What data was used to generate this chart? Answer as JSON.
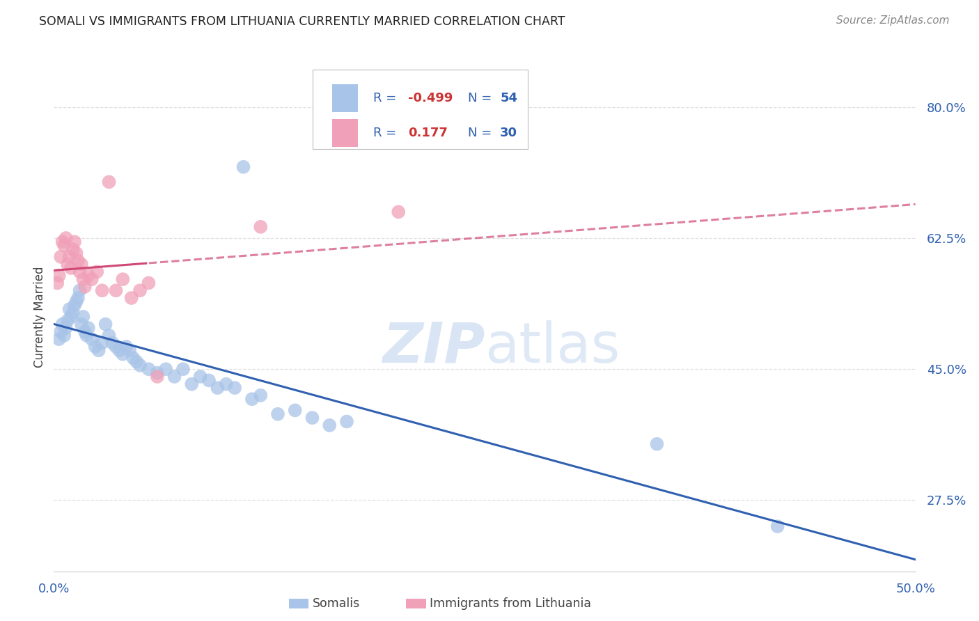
{
  "title": "SOMALI VS IMMIGRANTS FROM LITHUANIA CURRENTLY MARRIED CORRELATION CHART",
  "source": "Source: ZipAtlas.com",
  "ylabel": "Currently Married",
  "ytick_labels": [
    "80.0%",
    "62.5%",
    "45.0%",
    "27.5%"
  ],
  "ytick_values": [
    0.8,
    0.625,
    0.45,
    0.275
  ],
  "xlim": [
    0.0,
    0.5
  ],
  "ylim": [
    0.18,
    0.86
  ],
  "background_color": "#ffffff",
  "grid_color": "#d8d8d8",
  "watermark_zip": "ZIP",
  "watermark_atlas": "atlas",
  "watermark_color": "#c8d8ec",
  "somali_color": "#a8c4e8",
  "somali_line_color": "#3060b0",
  "somali_R": -0.499,
  "somali_N": 54,
  "somali_x": [
    0.003,
    0.004,
    0.005,
    0.006,
    0.007,
    0.008,
    0.009,
    0.01,
    0.011,
    0.012,
    0.013,
    0.014,
    0.015,
    0.016,
    0.017,
    0.018,
    0.019,
    0.02,
    0.022,
    0.024,
    0.026,
    0.028,
    0.03,
    0.032,
    0.034,
    0.036,
    0.038,
    0.04,
    0.042,
    0.044,
    0.046,
    0.048,
    0.05,
    0.055,
    0.06,
    0.065,
    0.07,
    0.075,
    0.08,
    0.085,
    0.09,
    0.095,
    0.1,
    0.105,
    0.11,
    0.115,
    0.12,
    0.13,
    0.14,
    0.15,
    0.16,
    0.17,
    0.35,
    0.42
  ],
  "somali_y": [
    0.49,
    0.5,
    0.51,
    0.495,
    0.505,
    0.515,
    0.53,
    0.52,
    0.525,
    0.535,
    0.54,
    0.545,
    0.555,
    0.51,
    0.52,
    0.5,
    0.495,
    0.505,
    0.49,
    0.48,
    0.475,
    0.485,
    0.51,
    0.495,
    0.485,
    0.48,
    0.475,
    0.47,
    0.48,
    0.475,
    0.465,
    0.46,
    0.455,
    0.45,
    0.445,
    0.45,
    0.44,
    0.45,
    0.43,
    0.44,
    0.435,
    0.425,
    0.43,
    0.425,
    0.72,
    0.41,
    0.415,
    0.39,
    0.395,
    0.385,
    0.375,
    0.38,
    0.35,
    0.24
  ],
  "lithuania_color": "#f0a0b8",
  "lithuania_line_color": "#d04878",
  "lithuania_R": 0.177,
  "lithuania_N": 30,
  "lithuania_x": [
    0.002,
    0.003,
    0.004,
    0.005,
    0.006,
    0.007,
    0.008,
    0.009,
    0.01,
    0.011,
    0.012,
    0.013,
    0.014,
    0.015,
    0.016,
    0.017,
    0.018,
    0.02,
    0.022,
    0.025,
    0.028,
    0.032,
    0.036,
    0.04,
    0.045,
    0.05,
    0.055,
    0.06,
    0.12,
    0.2
  ],
  "lithuania_y": [
    0.565,
    0.575,
    0.6,
    0.62,
    0.615,
    0.625,
    0.59,
    0.6,
    0.585,
    0.61,
    0.62,
    0.605,
    0.595,
    0.58,
    0.59,
    0.57,
    0.56,
    0.575,
    0.57,
    0.58,
    0.555,
    0.7,
    0.555,
    0.57,
    0.545,
    0.555,
    0.565,
    0.44,
    0.64,
    0.66
  ],
  "legend_somali_color": "#a8c4e8",
  "legend_lithuania_color": "#f0a0b8",
  "legend_text_color": "#3060b0",
  "legend_r_color": "#cc3333",
  "legend_n_color": "#3060b0"
}
